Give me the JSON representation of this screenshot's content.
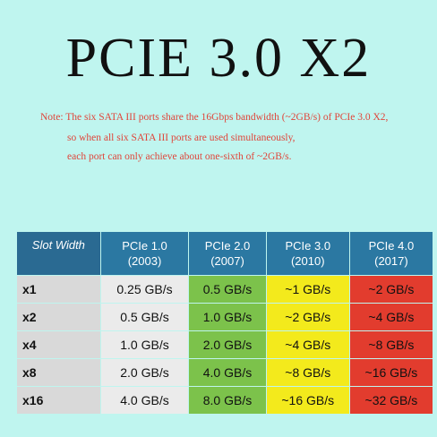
{
  "header": {
    "title": "PCIE 3.0 X2"
  },
  "note": {
    "lines": [
      "Note: The six SATA III ports share the 16Gbps bandwidth (~2GB/s) of PCIe 3.0 X2,",
      "so when all six SATA III ports are used simultaneously,",
      "each port can only achieve about one-sixth of ~2GB/s."
    ]
  },
  "table": {
    "columns": [
      {
        "lines": [
          "Slot Width"
        ]
      },
      {
        "lines": [
          "PCIe 1.0",
          "(2003)"
        ]
      },
      {
        "lines": [
          "PCIe 2.0",
          "(2007)"
        ]
      },
      {
        "lines": [
          "PCIe 3.0",
          "(2010)"
        ]
      },
      {
        "lines": [
          "PCIe 4.0",
          "(2017)"
        ]
      }
    ],
    "rows": [
      [
        "x1",
        "0.25 GB/s",
        "0.5 GB/s",
        "~1 GB/s",
        "~2 GB/s"
      ],
      [
        "x2",
        "0.5 GB/s",
        "1.0 GB/s",
        "~2 GB/s",
        "~4 GB/s"
      ],
      [
        "x4",
        "1.0 GB/s",
        "2.0 GB/s",
        "~4 GB/s",
        "~8 GB/s"
      ],
      [
        "x8",
        "2.0 GB/s",
        "4.0 GB/s",
        "~8 GB/s",
        "~16 GB/s"
      ],
      [
        "x16",
        "4.0 GB/s",
        "8.0 GB/s",
        "~16 GB/s",
        "~32 GB/s"
      ]
    ]
  }
}
